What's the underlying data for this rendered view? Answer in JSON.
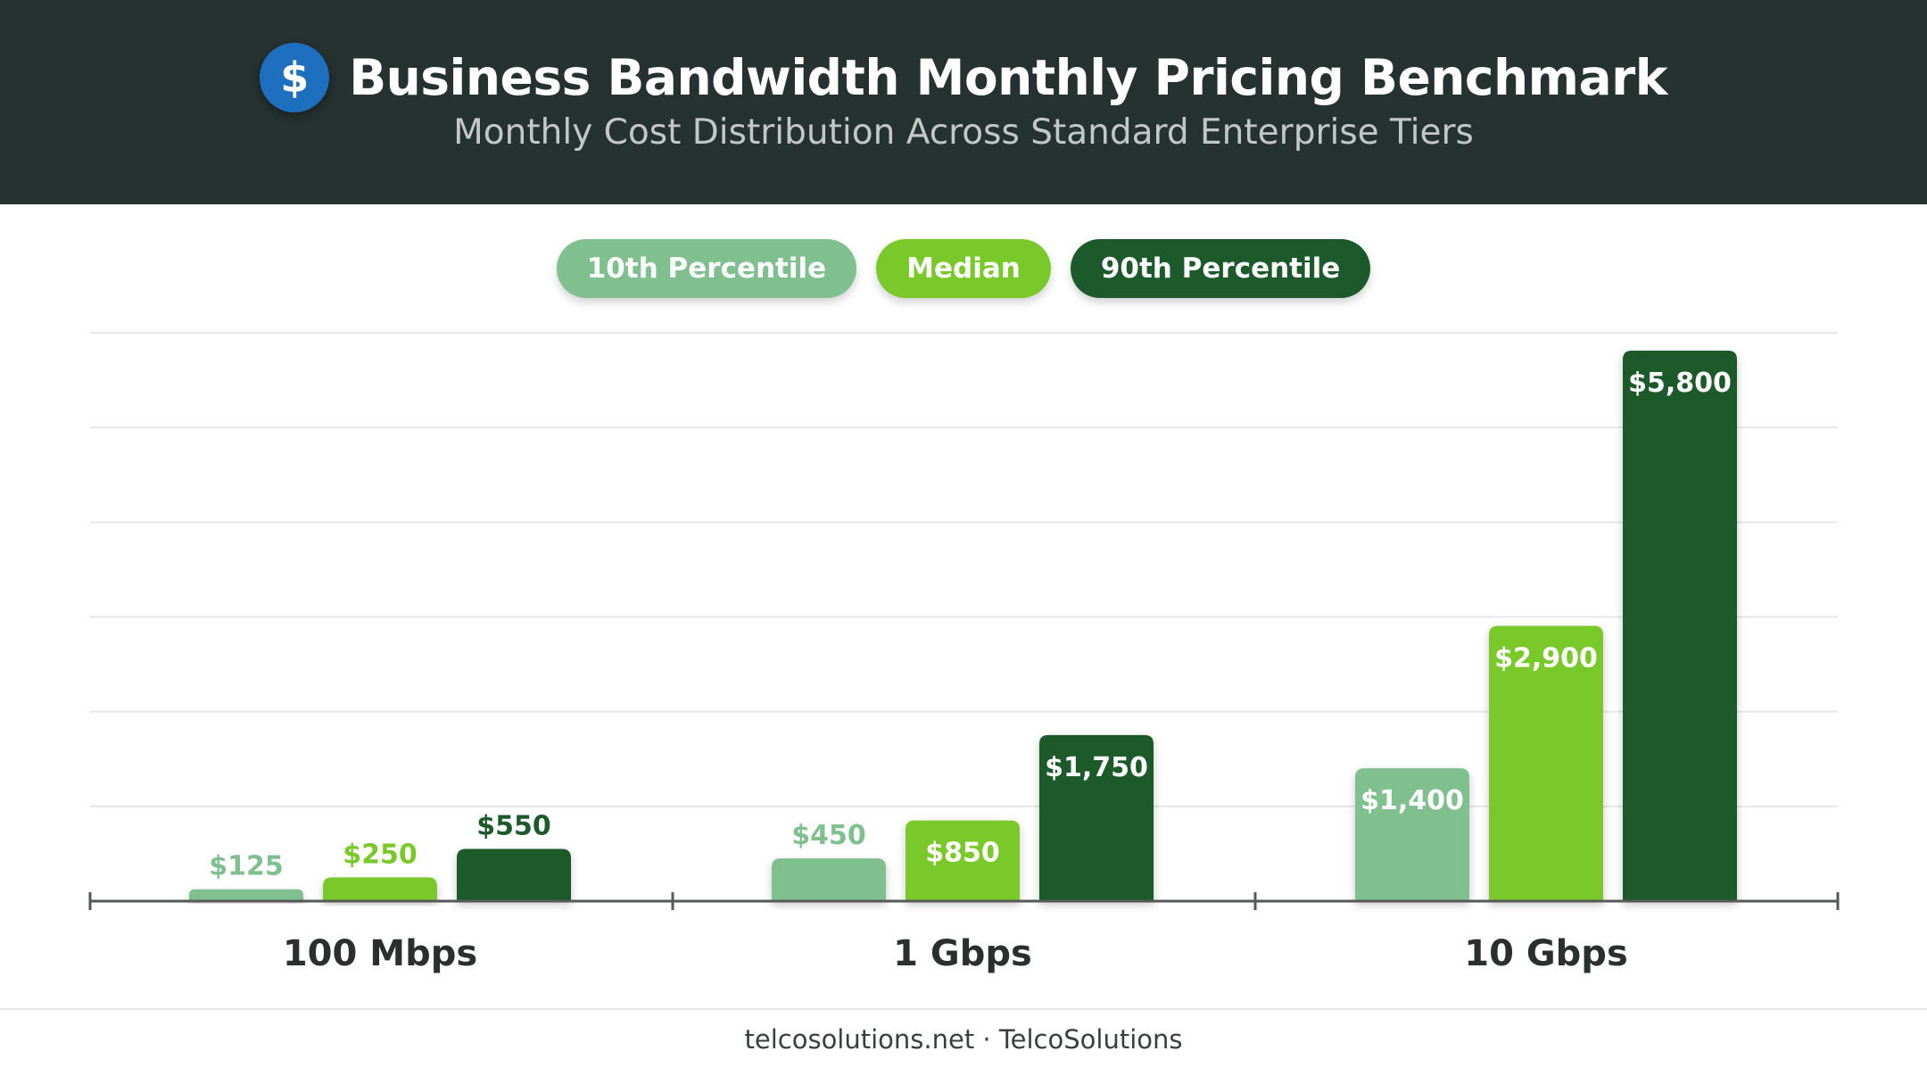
{
  "header": {
    "icon": "dollar-icon",
    "icon_glyph": "$",
    "title": "Business Bandwidth Monthly Pricing Benchmark",
    "subtitle": "Monthly Cost Distribution Across Standard Enterprise Tiers"
  },
  "footer": {
    "text": "telcosolutions.net · TelcoSolutions"
  },
  "colors": {
    "header_bg": "#263230",
    "icon_bg": "#1f6fc0",
    "p10": "#80c08f",
    "median": "#7ac92a",
    "p90": "#1c5a2c"
  },
  "chart_data": {
    "type": "bar",
    "title": "Business Bandwidth Monthly Pricing Benchmark",
    "subtitle": "Monthly Cost Distribution Across Standard Enterprise Tiers",
    "categories": [
      "100 Mbps",
      "1 Gbps",
      "10 Gbps"
    ],
    "series": [
      {
        "name": "10th Percentile",
        "color": "#80c08f",
        "values": [
          125,
          450,
          1400
        ],
        "labels": [
          "$125",
          "$450",
          "$1,400"
        ]
      },
      {
        "name": "Median",
        "color": "#7ac92a",
        "values": [
          250,
          850,
          2900
        ],
        "labels": [
          "$250",
          "$850",
          "$2,900"
        ]
      },
      {
        "name": "90th Percentile",
        "color": "#1c5a2c",
        "values": [
          550,
          1750,
          5800
        ],
        "labels": [
          "$550",
          "$1,750",
          "$5,800"
        ]
      }
    ],
    "xlabel": "",
    "ylabel": "",
    "ylim": [
      0,
      6000
    ],
    "grid": true,
    "legend_position": "top-center"
  }
}
